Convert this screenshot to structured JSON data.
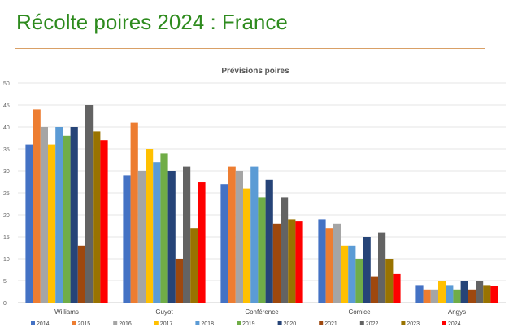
{
  "slide_title": "Récolte poires 2024 : France",
  "chart_data": {
    "type": "bar",
    "title": "Prévisions poires",
    "xlabel": "",
    "ylabel": "",
    "ylim": [
      0,
      50
    ],
    "yticks": [
      0,
      5,
      10,
      15,
      20,
      25,
      30,
      35,
      40,
      45,
      50
    ],
    "grid": true,
    "legend_position": "bottom",
    "categories": [
      "Williams",
      "Guyot",
      "Conférence",
      "Comice",
      "Angys"
    ],
    "series": [
      {
        "name": "2014",
        "color": "#4472c4",
        "values": [
          36,
          29,
          27,
          19,
          4
        ]
      },
      {
        "name": "2015",
        "color": "#ed7d31",
        "values": [
          44,
          41,
          31,
          17,
          3
        ]
      },
      {
        "name": "2016",
        "color": "#a5a5a5",
        "values": [
          40,
          30,
          30,
          18,
          3
        ]
      },
      {
        "name": "2017",
        "color": "#ffc000",
        "values": [
          36,
          35,
          26,
          13,
          5
        ]
      },
      {
        "name": "2018",
        "color": "#5b9bd5",
        "values": [
          40,
          32,
          31,
          13,
          4
        ]
      },
      {
        "name": "2019",
        "color": "#70ad47",
        "values": [
          38,
          34,
          24,
          10,
          3
        ]
      },
      {
        "name": "2020",
        "color": "#264478",
        "values": [
          40,
          30,
          28,
          15,
          5
        ]
      },
      {
        "name": "2021",
        "color": "#9e480e",
        "values": [
          13,
          10,
          18,
          6,
          3
        ]
      },
      {
        "name": "2022",
        "color": "#636363",
        "values": [
          45,
          31,
          24,
          16,
          5
        ]
      },
      {
        "name": "2023",
        "color": "#997300",
        "values": [
          39,
          17,
          19,
          10,
          4
        ]
      },
      {
        "name": "2024",
        "color": "#ff0000",
        "values": [
          37,
          27.4,
          18.5,
          6.5,
          3.8
        ]
      }
    ]
  }
}
